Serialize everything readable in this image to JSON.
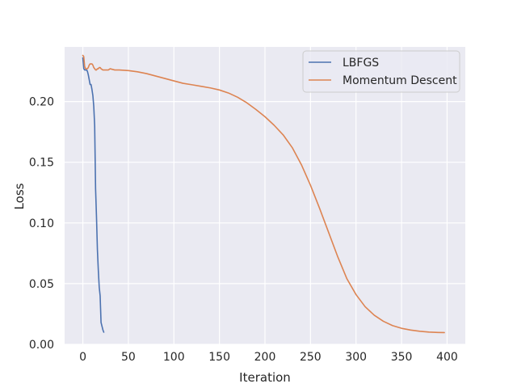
{
  "colors": {
    "background": "#ffffff",
    "plot_background": "#eaeaf2",
    "grid": "#ffffff",
    "text": "#262626",
    "lbfgs": "#4c72b0",
    "momentum": "#dd8452"
  },
  "chart_data": {
    "type": "line",
    "title": "",
    "xlabel": "Iteration",
    "ylabel": "Loss",
    "xlim": [
      -20,
      420
    ],
    "ylim": [
      0.0,
      0.245
    ],
    "xticks": [
      0,
      50,
      100,
      150,
      200,
      250,
      300,
      350,
      400
    ],
    "xtick_labels": [
      "0",
      "50",
      "100",
      "150",
      "200",
      "250",
      "300",
      "350",
      "400"
    ],
    "yticks": [
      0.0,
      0.05,
      0.1,
      0.15,
      0.2
    ],
    "ytick_labels": [
      "0.00",
      "0.05",
      "0.10",
      "0.15",
      "0.20"
    ],
    "grid": true,
    "legend_position": "top-right",
    "series": [
      {
        "name": "LBFGS",
        "color": "#4c72b0",
        "x": [
          0,
          1,
          2,
          3,
          4,
          5,
          6,
          7,
          8,
          9,
          10,
          11,
          12,
          13,
          14,
          15,
          16,
          17,
          18,
          19,
          20,
          21,
          22,
          23
        ],
        "y": [
          0.236,
          0.227,
          0.226,
          0.226,
          0.226,
          0.225,
          0.222,
          0.218,
          0.214,
          0.214,
          0.21,
          0.205,
          0.196,
          0.18,
          0.128,
          0.105,
          0.078,
          0.061,
          0.047,
          0.04,
          0.018,
          0.015,
          0.012,
          0.01
        ]
      },
      {
        "name": "Momentum Descent",
        "color": "#dd8452",
        "x": [
          0,
          1,
          2,
          3,
          4,
          5,
          6,
          7,
          8,
          9,
          10,
          11,
          12,
          13,
          14,
          15,
          16,
          17,
          18,
          19,
          20,
          22,
          24,
          26,
          28,
          30,
          35,
          40,
          50,
          60,
          70,
          80,
          90,
          100,
          110,
          120,
          130,
          140,
          150,
          160,
          170,
          180,
          190,
          200,
          210,
          220,
          230,
          240,
          250,
          260,
          270,
          280,
          290,
          300,
          310,
          320,
          330,
          340,
          350,
          360,
          370,
          380,
          390,
          397
        ],
        "y": [
          0.238,
          0.237,
          0.229,
          0.227,
          0.227,
          0.227,
          0.228,
          0.23,
          0.231,
          0.231,
          0.231,
          0.23,
          0.228,
          0.227,
          0.226,
          0.226,
          0.227,
          0.227,
          0.228,
          0.228,
          0.227,
          0.226,
          0.226,
          0.226,
          0.226,
          0.227,
          0.226,
          0.226,
          0.2255,
          0.2245,
          0.223,
          0.221,
          0.219,
          0.217,
          0.215,
          0.2138,
          0.2125,
          0.2112,
          0.2095,
          0.207,
          0.2035,
          0.199,
          0.1935,
          0.1875,
          0.1805,
          0.1725,
          0.162,
          0.148,
          0.131,
          0.112,
          0.092,
          0.072,
          0.054,
          0.041,
          0.031,
          0.024,
          0.019,
          0.0155,
          0.0132,
          0.0118,
          0.0108,
          0.0101,
          0.0098,
          0.0097
        ]
      }
    ]
  }
}
